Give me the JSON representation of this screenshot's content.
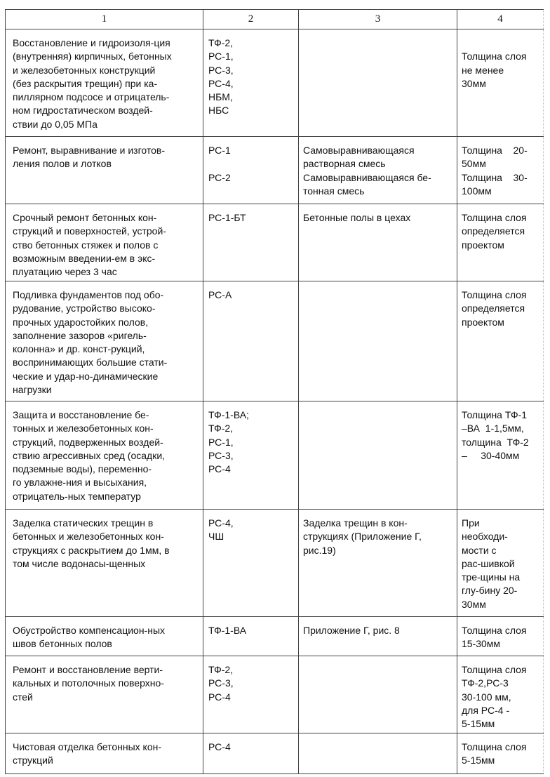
{
  "header": [
    "1",
    "2",
    "3",
    "4"
  ],
  "rows": [
    {
      "cells": [
        [
          "Восстановление и гидроизоля-ция",
          "(внутренняя) кирпичных, бетонных",
          "и железобетонных конструкций",
          "(без раскрытия трещин) при ка-",
          "пиллярном подсосе и отрицатель-",
          "ном гидростатическом воздей-",
          "ствии до 0,05 МПа"
        ],
        [
          "ТФ-2,",
          "РС-1,",
          "РС-3,",
          "РС-4,",
          "НБМ,",
          "НБС"
        ],
        [],
        [
          "",
          "Толщина слоя",
          "не менее",
          "30мм"
        ]
      ]
    },
    {
      "cells": [
        [
          "Ремонт, выравнивание и изготов-",
          "ления полов и лотков"
        ],
        [
          "РС-1",
          "",
          "РС-2"
        ],
        [
          "Самовыравнивающаяся",
          "растворная смесь",
          "Самовыравнивающаяся бе-",
          "тонная смесь"
        ],
        [
          "Толщина    20-",
          "50мм",
          "Толщина    30-",
          "100мм"
        ]
      ]
    },
    {
      "cells": [
        [
          "Срочный ремонт бетонных кон-",
          "струкций и поверхностей, устрой-",
          "ство бетонных стяжек и полов с",
          "возможным введении-ем в экс-",
          "плуатацию через 3 час"
        ],
        [
          "РС-1-БТ"
        ],
        [
          "Бетонные полы в цехах"
        ],
        [
          "Толщина слоя",
          "определяется",
          "проектом"
        ]
      ]
    },
    {
      "cells": [
        [
          "Подливка фундаментов под обо-",
          "рудование, устройство высоко-",
          "прочных ударостойких полов,",
          "заполнение зазоров «ригель-",
          "колонна» и др. конст-рукций,",
          "воспринимающих большие стати-",
          "ческие и удар-но-динамические",
          "нагрузки"
        ],
        [
          "РС-А"
        ],
        [],
        [
          "Толщина слоя",
          "определяется",
          "проектом"
        ]
      ]
    },
    {
      "cells": [
        [
          "Защита и восстановление бе-",
          "тонных и железобетонных кон-",
          "струкций, подверженных воздей-",
          "ствию агрессивных сред (осадки,",
          "подземные воды), переменно-",
          "го увлажне-ния и высыхания,",
          "отрицатель-ных температур"
        ],
        [
          "ТФ-1-ВА;",
          "ТФ-2,",
          "РС-1,",
          "РС-3,",
          "РС-4"
        ],
        [],
        [
          "Толщина ТФ-1",
          "–ВА  1-1,5мм,",
          "толщина  ТФ-2",
          "–     30-40мм"
        ]
      ]
    },
    {
      "cells": [
        [
          "Заделка статических трещин в",
          "бетонных и железобетонных кон-",
          "струкциях с раскрытием до 1мм, в",
          "том числе водонасы-щенных"
        ],
        [
          "РС-4,",
          "ЧШ"
        ],
        [
          "Заделка трещин в кон-",
          "струкциях (Приложение Г,",
          "рис.19)"
        ],
        [
          "При",
          "необходи-",
          "мости с",
          "рас-шивкой",
          "тре-щины на",
          "глу-бину 20-",
          "30мм"
        ]
      ]
    },
    {
      "cells": [
        [
          "Обустройство компенсацион-ных",
          "швов бетонных полов"
        ],
        [
          "ТФ-1-ВА"
        ],
        [
          "Приложение Г, рис. 8"
        ],
        [
          "Толщина слоя",
          "15-30мм"
        ]
      ]
    },
    {
      "cells": [
        [
          "Ремонт и восстановление верти-",
          "кальных и потолочных поверхно-",
          "стей"
        ],
        [
          "ТФ-2,",
          "РС-3,",
          "РС-4"
        ],
        [],
        [
          "Толщина слоя",
          "ТФ-2,РС-3",
          "30-100 мм,",
          "для РС-4 -",
          "5-15мм"
        ]
      ]
    },
    {
      "cells": [
        [
          "Чистовая отделка бетонных кон-",
          "струкций"
        ],
        [
          "РС-4"
        ],
        [],
        [
          "Толщина слоя",
          "5-15мм"
        ]
      ]
    }
  ]
}
